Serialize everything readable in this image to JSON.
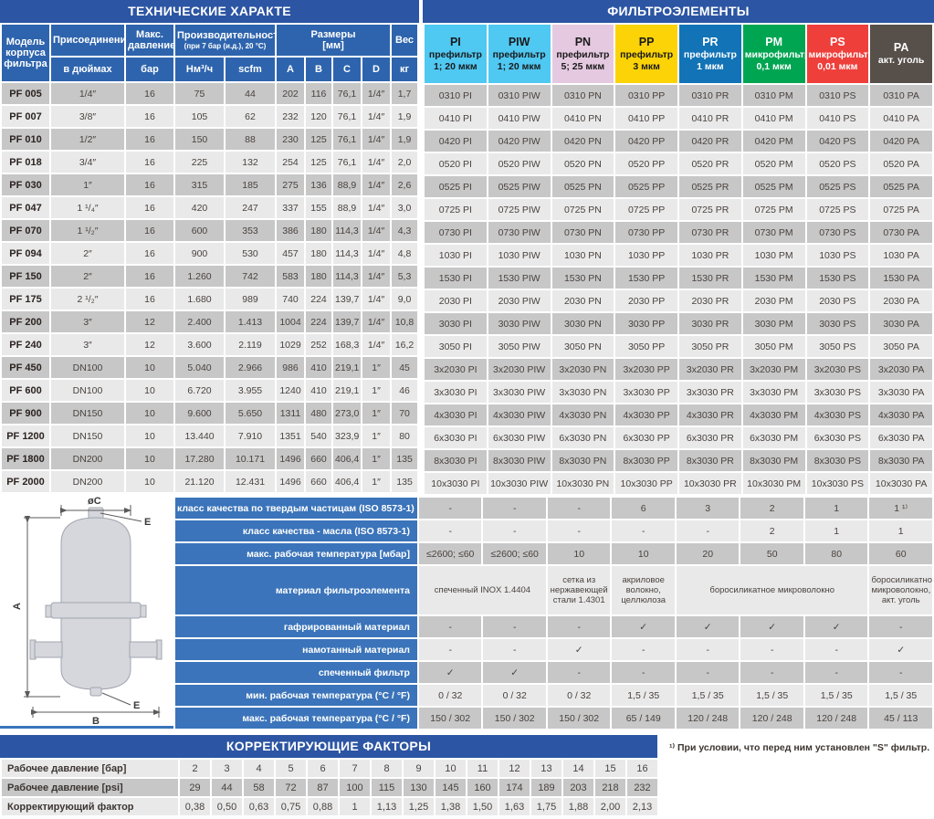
{
  "colors": {
    "blue-dark": "#2c55a3",
    "blue-head": "#2e64ad",
    "blue-mid": "#3b74ba",
    "row-dark": "#c7c7c7",
    "row-light": "#e9e9e9",
    "txt": "#4a423e"
  },
  "tech": {
    "title": "ТЕХНИЧЕСКИЕ ХАРАКТЕ",
    "headers": {
      "model": "Модель корпуса фильтра",
      "connection": "Присоединение",
      "connection_sub": "в дюймах",
      "pressure": "Макс. давление",
      "pressure_sub": "бар",
      "capacity": "Производительность",
      "capacity_note": "(при 7 бар (и.д.), 20 °C)",
      "capacity_sub1": "Нм³/ч",
      "capacity_sub2": "scfm",
      "dims": "Размеры",
      "dims_unit": "[мм]",
      "dim_a": "A",
      "dim_b": "B",
      "dim_c": "C",
      "dim_d": "D",
      "weight": "Вес",
      "weight_sub": "кг"
    },
    "rows": [
      [
        "PF 005",
        "1/4″",
        "16",
        "75",
        "44",
        "202",
        "116",
        "76,1",
        "1/4″",
        "1,7"
      ],
      [
        "PF 007",
        "3/8″",
        "16",
        "105",
        "62",
        "232",
        "120",
        "76,1",
        "1/4″",
        "1,9"
      ],
      [
        "PF 010",
        "1/2″",
        "16",
        "150",
        "88",
        "230",
        "125",
        "76,1",
        "1/4″",
        "1,9"
      ],
      [
        "PF 018",
        "3/4″",
        "16",
        "225",
        "132",
        "254",
        "125",
        "76,1",
        "1/4″",
        "2,0"
      ],
      [
        "PF 030",
        "1″",
        "16",
        "315",
        "185",
        "275",
        "136",
        "88,9",
        "1/4″",
        "2,6"
      ],
      [
        "PF 047",
        "1 ¹/₄″",
        "16",
        "420",
        "247",
        "337",
        "155",
        "88,9",
        "1/4″",
        "3,0"
      ],
      [
        "PF 070",
        "1 ¹/₂″",
        "16",
        "600",
        "353",
        "386",
        "180",
        "114,3",
        "1/4″",
        "4,3"
      ],
      [
        "PF 094",
        "2″",
        "16",
        "900",
        "530",
        "457",
        "180",
        "114,3",
        "1/4″",
        "4,8"
      ],
      [
        "PF 150",
        "2″",
        "16",
        "1.260",
        "742",
        "583",
        "180",
        "114,3",
        "1/4″",
        "5,3"
      ],
      [
        "PF 175",
        "2 ¹/₂″",
        "16",
        "1.680",
        "989",
        "740",
        "224",
        "139,7",
        "1/4″",
        "9,0"
      ],
      [
        "PF 200",
        "3″",
        "12",
        "2.400",
        "1.413",
        "1004",
        "224",
        "139,7",
        "1/4″",
        "10,8"
      ],
      [
        "PF 240",
        "3″",
        "12",
        "3.600",
        "2.119",
        "1029",
        "252",
        "168,3",
        "1/4″",
        "16,2"
      ],
      [
        "PF 450",
        "DN100",
        "10",
        "5.040",
        "2.966",
        "986",
        "410",
        "219,1",
        "1″",
        "45"
      ],
      [
        "PF 600",
        "DN100",
        "10",
        "6.720",
        "3.955",
        "1240",
        "410",
        "219,1",
        "1″",
        "46"
      ],
      [
        "PF 900",
        "DN150",
        "10",
        "9.600",
        "5.650",
        "1311",
        "480",
        "273,0",
        "1″",
        "70"
      ],
      [
        "PF 1200",
        "DN150",
        "10",
        "13.440",
        "7.910",
        "1351",
        "540",
        "323,9",
        "1″",
        "80"
      ],
      [
        "PF 1800",
        "DN200",
        "10",
        "17.280",
        "10.171",
        "1496",
        "660",
        "406,4",
        "1″",
        "135"
      ],
      [
        "PF 2000",
        "DN200",
        "10",
        "21.120",
        "12.431",
        "1496",
        "660",
        "406,4",
        "1″",
        "135"
      ]
    ]
  },
  "elements": {
    "title": "ФИЛЬТРОЭЛЕМЕНТЫ",
    "columns": [
      {
        "code": "PI",
        "type": "префильтр",
        "rating": "1; 20 мкм",
        "bg": "#4fc8f2",
        "fg": "#1a1a1a"
      },
      {
        "code": "PIW",
        "type": "префильтр",
        "rating": "1; 20 мкм",
        "bg": "#4fc8f2",
        "fg": "#1a1a1a"
      },
      {
        "code": "PN",
        "type": "префильтр",
        "rating": "5; 25 мкм",
        "bg": "#e5c9e0",
        "fg": "#1a1a1a"
      },
      {
        "code": "PP",
        "type": "префильтр",
        "rating": "3 мкм",
        "bg": "#fbd307",
        "fg": "#1a1a1a"
      },
      {
        "code": "PR",
        "type": "префильтр",
        "rating": "1 мкм",
        "bg": "#1273b6",
        "fg": "#ffffff"
      },
      {
        "code": "PM",
        "type": "микрофильтр",
        "rating": "0,1 мкм",
        "bg": "#00a552",
        "fg": "#ffffff"
      },
      {
        "code": "PS",
        "type": "микрофильтр",
        "rating": "0,01 мкм",
        "bg": "#ee3f3b",
        "fg": "#ffffff"
      },
      {
        "code": "PA",
        "type": "акт. уголь",
        "rating": "",
        "bg": "#564f4a",
        "fg": "#ffffff"
      }
    ],
    "rows": [
      [
        "0310 PI",
        "0310 PIW",
        "0310 PN",
        "0310 PP",
        "0310 PR",
        "0310 PM",
        "0310 PS",
        "0310 PA"
      ],
      [
        "0410 PI",
        "0410 PIW",
        "0410 PN",
        "0410 PP",
        "0410 PR",
        "0410 PM",
        "0410 PS",
        "0410 PA"
      ],
      [
        "0420 PI",
        "0420 PIW",
        "0420 PN",
        "0420 PP",
        "0420 PR",
        "0420 PM",
        "0420 PS",
        "0420 PA"
      ],
      [
        "0520 PI",
        "0520 PIW",
        "0520 PN",
        "0520 PP",
        "0520 PR",
        "0520 PM",
        "0520 PS",
        "0520 PA"
      ],
      [
        "0525 PI",
        "0525 PIW",
        "0525 PN",
        "0525 PP",
        "0525 PR",
        "0525 PM",
        "0525 PS",
        "0525 PA"
      ],
      [
        "0725 PI",
        "0725 PIW",
        "0725 PN",
        "0725 PP",
        "0725 PR",
        "0725 PM",
        "0725 PS",
        "0725 PA"
      ],
      [
        "0730 PI",
        "0730 PIW",
        "0730 PN",
        "0730 PP",
        "0730 PR",
        "0730 PM",
        "0730 PS",
        "0730 PA"
      ],
      [
        "1030 PI",
        "1030 PIW",
        "1030 PN",
        "1030 PP",
        "1030 PR",
        "1030 PM",
        "1030 PS",
        "1030 PA"
      ],
      [
        "1530 PI",
        "1530 PIW",
        "1530 PN",
        "1530 PP",
        "1530 PR",
        "1530 PM",
        "1530 PS",
        "1530 PA"
      ],
      [
        "2030 PI",
        "2030 PIW",
        "2030 PN",
        "2030 PP",
        "2030 PR",
        "2030 PM",
        "2030 PS",
        "2030 PA"
      ],
      [
        "3030 PI",
        "3030 PIW",
        "3030 PN",
        "3030 PP",
        "3030 PR",
        "3030 PM",
        "3030 PS",
        "3030 PA"
      ],
      [
        "3050 PI",
        "3050 PIW",
        "3050 PN",
        "3050 PP",
        "3050 PR",
        "3050 PM",
        "3050 PS",
        "3050 PA"
      ],
      [
        "3x2030 PI",
        "3x2030 PIW",
        "3x2030 PN",
        "3x2030 PP",
        "3x2030 PR",
        "3x2030 PM",
        "3x2030 PS",
        "3x2030 PA"
      ],
      [
        "3x3030 PI",
        "3x3030 PIW",
        "3x3030 PN",
        "3x3030 PP",
        "3x3030 PR",
        "3x3030 PM",
        "3x3030 PS",
        "3x3030 PA"
      ],
      [
        "4x3030 PI",
        "4x3030 PIW",
        "4x3030 PN",
        "4x3030 PP",
        "4x3030 PR",
        "4x3030 PM",
        "4x3030 PS",
        "4x3030 PA"
      ],
      [
        "6x3030 PI",
        "6x3030 PIW",
        "6x3030 PN",
        "6x3030 PP",
        "6x3030 PR",
        "6x3030 PM",
        "6x3030 PS",
        "6x3030 PA"
      ],
      [
        "8x3030 PI",
        "8x3030 PIW",
        "8x3030 PN",
        "8x3030 PP",
        "8x3030 PR",
        "8x3030 PM",
        "8x3030 PS",
        "8x3030 PA"
      ],
      [
        "10x3030 PI",
        "10x3030 PIW",
        "10x3030 PN",
        "10x3030 PP",
        "10x3030 PR",
        "10x3030 PM",
        "10x3030 PS",
        "10x3030 PA"
      ]
    ]
  },
  "specs": {
    "rows": [
      {
        "label": "класс качества по твердым частицам (ISO 8573-1)",
        "values": [
          "-",
          "-",
          "-",
          "6",
          "3",
          "2",
          "1",
          "1 ¹⁾"
        ]
      },
      {
        "label": "класс качества - масла (ISO 8573-1)",
        "values": [
          "-",
          "-",
          "-",
          "-",
          "-",
          "2",
          "1",
          "1"
        ]
      },
      {
        "label": "макс. рабочая температура [мбар]",
        "values": [
          "≤2600; ≤60",
          "≤2600; ≤60",
          "10",
          "10",
          "20",
          "50",
          "80",
          "60"
        ]
      },
      {
        "label": "материал фильтроэлемента",
        "tall": true,
        "values": [
          {
            "text": "спеченный INOX 1.4404",
            "span": 2
          },
          {
            "text": "сетка из нержавеющей стали 1.4301",
            "span": 1
          },
          {
            "text": "акриловое волокно, целлюлоза",
            "span": 1
          },
          {
            "text": "боросиликатное микроволокно",
            "span": 3
          },
          {
            "text": "боросиликатное микроволокно, акт. уголь",
            "span": 1
          }
        ]
      },
      {
        "label": "гафрированный материал",
        "values": [
          "-",
          "-",
          "-",
          "✓",
          "✓",
          "✓",
          "✓",
          "-"
        ]
      },
      {
        "label": "намотанный материал",
        "values": [
          "-",
          "-",
          "✓",
          "-",
          "-",
          "-",
          "-",
          "✓"
        ]
      },
      {
        "label": "спеченный фильтр",
        "values": [
          "✓",
          "✓",
          "-",
          "-",
          "-",
          "-",
          "-",
          "-"
        ]
      },
      {
        "label": "мин. рабочая температура (°C / °F)",
        "values": [
          "0 / 32",
          "0 / 32",
          "0 / 32",
          "1,5 / 35",
          "1,5 / 35",
          "1,5 / 35",
          "1,5 / 35",
          "1,5 / 35"
        ]
      },
      {
        "label": "макс. рабочая температура (°C / °F)",
        "values": [
          "150 / 302",
          "150 / 302",
          "150 / 302",
          "65 / 149",
          "120 / 248",
          "120 / 248",
          "120 / 248",
          "45 / 113"
        ]
      }
    ]
  },
  "diagram": {
    "labels": {
      "diameter": "øC",
      "height": "A",
      "width": "B",
      "port": "E"
    }
  },
  "correction": {
    "title": "КОРРЕКТИРУЮЩИЕ ФАКТОРЫ",
    "rows": [
      {
        "label": "Рабочее давление [бар]",
        "values": [
          "2",
          "3",
          "4",
          "5",
          "6",
          "7",
          "8",
          "9",
          "10",
          "11",
          "12",
          "13",
          "14",
          "15",
          "16"
        ]
      },
      {
        "label": "Рабочее давление [psi]",
        "values": [
          "29",
          "44",
          "58",
          "72",
          "87",
          "100",
          "115",
          "130",
          "145",
          "160",
          "174",
          "189",
          "203",
          "218",
          "232"
        ]
      },
      {
        "label": "Корректирующий фактор",
        "values": [
          "0,38",
          "0,50",
          "0,63",
          "0,75",
          "0,88",
          "1",
          "1,13",
          "1,25",
          "1,38",
          "1,50",
          "1,63",
          "1,75",
          "1,88",
          "2,00",
          "2,13"
        ]
      }
    ]
  },
  "footnote": "¹⁾ При условии, что перед ним установлен \"S\" фильтр."
}
